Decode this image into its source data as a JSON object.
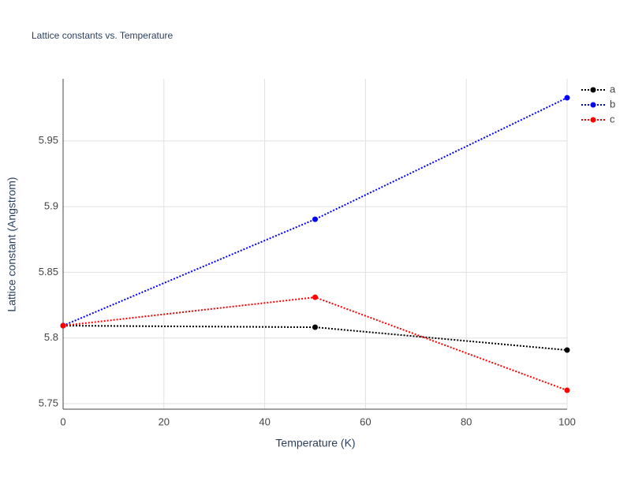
{
  "chart_data": {
    "type": "line",
    "title": "Lattice constants vs. Temperature",
    "x_label": "Temperature (K)",
    "y_label": "Lattice constant (Angstrom)",
    "x": [
      0,
      50,
      100
    ],
    "series": [
      {
        "name": "a",
        "color": "#000000",
        "values": [
          5.8094,
          5.8082,
          5.7908
        ]
      },
      {
        "name": "b",
        "color": "#0000ff",
        "values": [
          5.8094,
          5.8904,
          5.9829
        ]
      },
      {
        "name": "c",
        "color": "#ff0000",
        "values": [
          5.8094,
          5.831,
          5.7602
        ]
      }
    ],
    "xlim": [
      0,
      100
    ],
    "xticks": [
      0,
      20,
      40,
      60,
      80,
      100
    ],
    "ylim": [
      5.7458,
      5.9973
    ],
    "yticks": [
      5.75,
      5.8,
      5.85,
      5.9,
      5.95
    ],
    "grid": true,
    "legend": "right"
  }
}
